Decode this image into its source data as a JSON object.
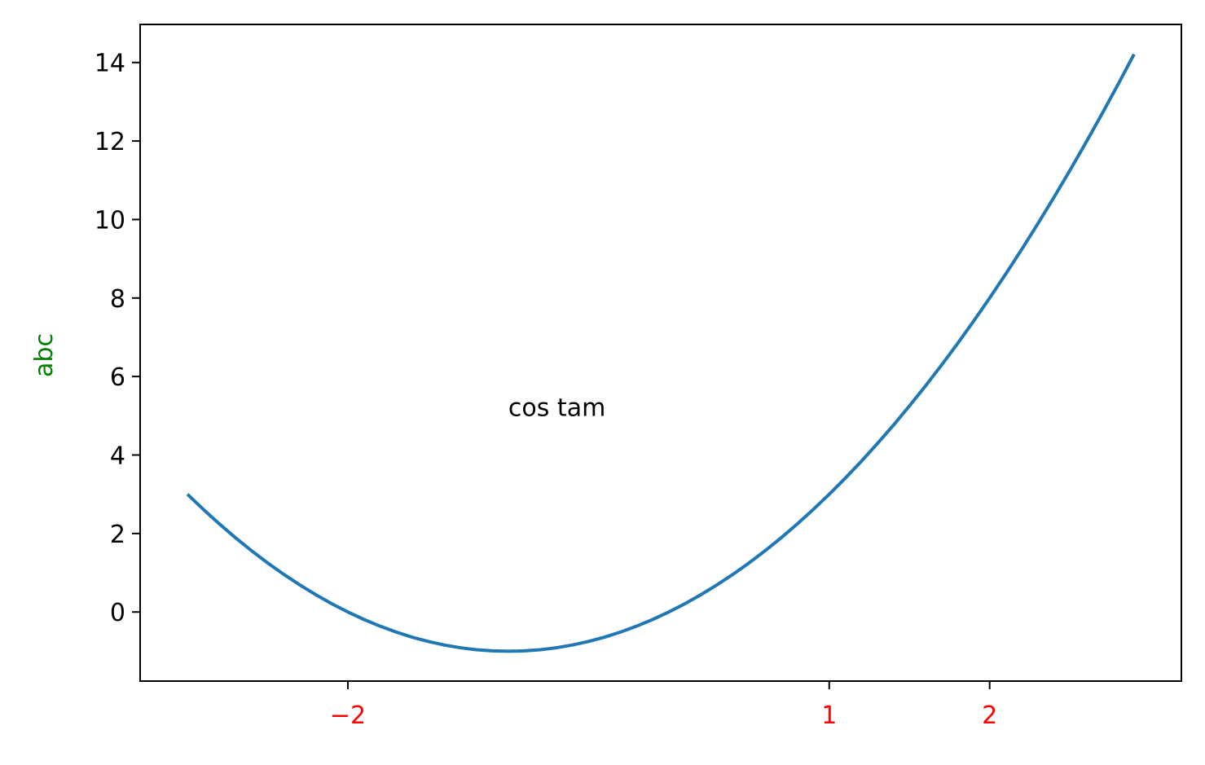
{
  "chart_data": {
    "type": "line",
    "ylabel": "abc",
    "annotation": {
      "text": "cos tam",
      "x": -1,
      "y": 5
    },
    "x": [
      -3.0,
      -2.9,
      -2.8,
      -2.7,
      -2.6,
      -2.5,
      -2.4,
      -2.3,
      -2.2,
      -2.1,
      -2.0,
      -1.9,
      -1.8,
      -1.7,
      -1.6,
      -1.5,
      -1.4,
      -1.3,
      -1.2,
      -1.1,
      -1.0,
      -0.9,
      -0.8,
      -0.7,
      -0.6,
      -0.5,
      -0.4,
      -0.3,
      -0.2,
      -0.1,
      0.0,
      0.1,
      0.2,
      0.3,
      0.4,
      0.5,
      0.6,
      0.7,
      0.8,
      0.9,
      1.0,
      1.1,
      1.2,
      1.3,
      1.4,
      1.5,
      1.6,
      1.7,
      1.8,
      1.9,
      2.0,
      2.1,
      2.2,
      2.3,
      2.4,
      2.5,
      2.6,
      2.7,
      2.8,
      2.9
    ],
    "series": [
      {
        "color": "#1f77b4",
        "values": [
          3,
          2.61,
          2.24,
          1.89,
          1.56,
          1.25,
          0.96,
          0.69,
          0.44,
          0.21,
          0,
          -0.19,
          -0.36,
          -0.51,
          -0.64,
          -0.75,
          -0.84,
          -0.91,
          -0.96,
          -0.99,
          -1,
          -0.99,
          -0.96,
          -0.91,
          -0.84,
          -0.75,
          -0.64,
          -0.51,
          -0.36,
          -0.19,
          0,
          0.21,
          0.44,
          0.69,
          0.96,
          1.25,
          1.56,
          1.89,
          2.24,
          2.61,
          3,
          3.41,
          3.84,
          4.29,
          4.76,
          5.25,
          5.76,
          6.29,
          6.84,
          7.41,
          8,
          8.61,
          9.24,
          9.89,
          10.56,
          11.25,
          11.96,
          12.69,
          13.44,
          14.21
        ]
      }
    ],
    "xlim": [
      -3.295,
      3.195
    ],
    "ylim": [
      -1.76,
      14.97
    ],
    "xticks": [
      {
        "value": -2,
        "label": "−2"
      },
      1,
      2
    ],
    "yticks": [
      0,
      2,
      4,
      6,
      8,
      10,
      12,
      14
    ],
    "xtick_color": "#ff0000",
    "ylabel_color": "#008000",
    "grid": false
  }
}
